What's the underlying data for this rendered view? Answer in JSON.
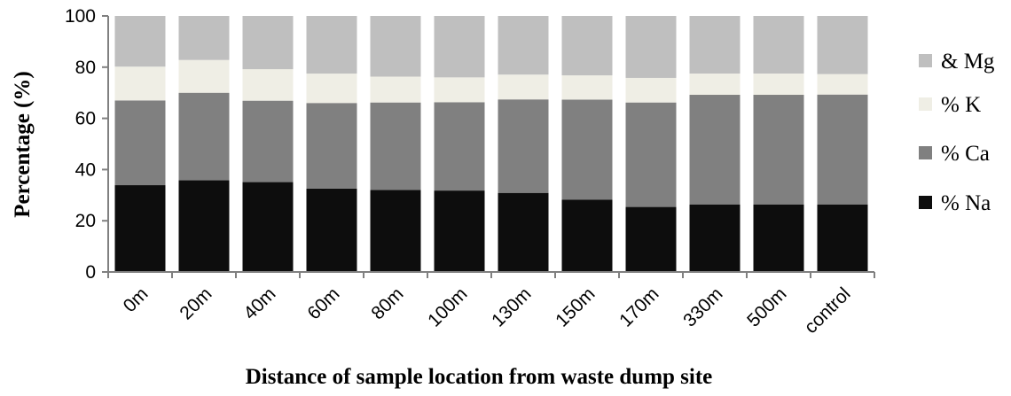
{
  "chart_data": {
    "type": "bar",
    "stacked": true,
    "title": "",
    "xlabel": "Distance of sample location from waste dump site",
    "ylabel": "Percentage (%)",
    "ylim": [
      0,
      100
    ],
    "yticks": [
      "0",
      "20",
      "40",
      "60",
      "80",
      "100"
    ],
    "categories": [
      "0m",
      "20m",
      "40m",
      "60m",
      "80m",
      "100m",
      "130m",
      "150m",
      "170m",
      "330m",
      "500m",
      "control"
    ],
    "series": [
      {
        "name": "% Na",
        "color": "#0d0d0d",
        "values": [
          33.9,
          35.8,
          35.1,
          32.6,
          32.0,
          31.8,
          30.9,
          28.2,
          25.4,
          26.4,
          26.4,
          26.4
        ]
      },
      {
        "name": "% Ca",
        "color": "#808080",
        "values": [
          33.1,
          34.2,
          31.8,
          33.4,
          34.2,
          34.5,
          36.5,
          39.1,
          40.8,
          42.8,
          42.8,
          42.9
        ]
      },
      {
        "name": "% K",
        "color": "#efeee5",
        "values": [
          13.2,
          12.8,
          12.3,
          11.5,
          10.1,
          9.7,
          9.7,
          9.5,
          9.6,
          8.3,
          8.3,
          8.0
        ]
      },
      {
        "name": "& Mg",
        "color": "#bfbfbf",
        "values": [
          19.8,
          17.2,
          20.8,
          22.5,
          23.7,
          24.0,
          22.9,
          23.2,
          24.2,
          22.5,
          22.5,
          22.7
        ]
      }
    ],
    "legend_order": [
      "& Mg",
      "% K",
      "% Ca",
      "% Na"
    ],
    "legend_position": "right",
    "grid": false
  }
}
